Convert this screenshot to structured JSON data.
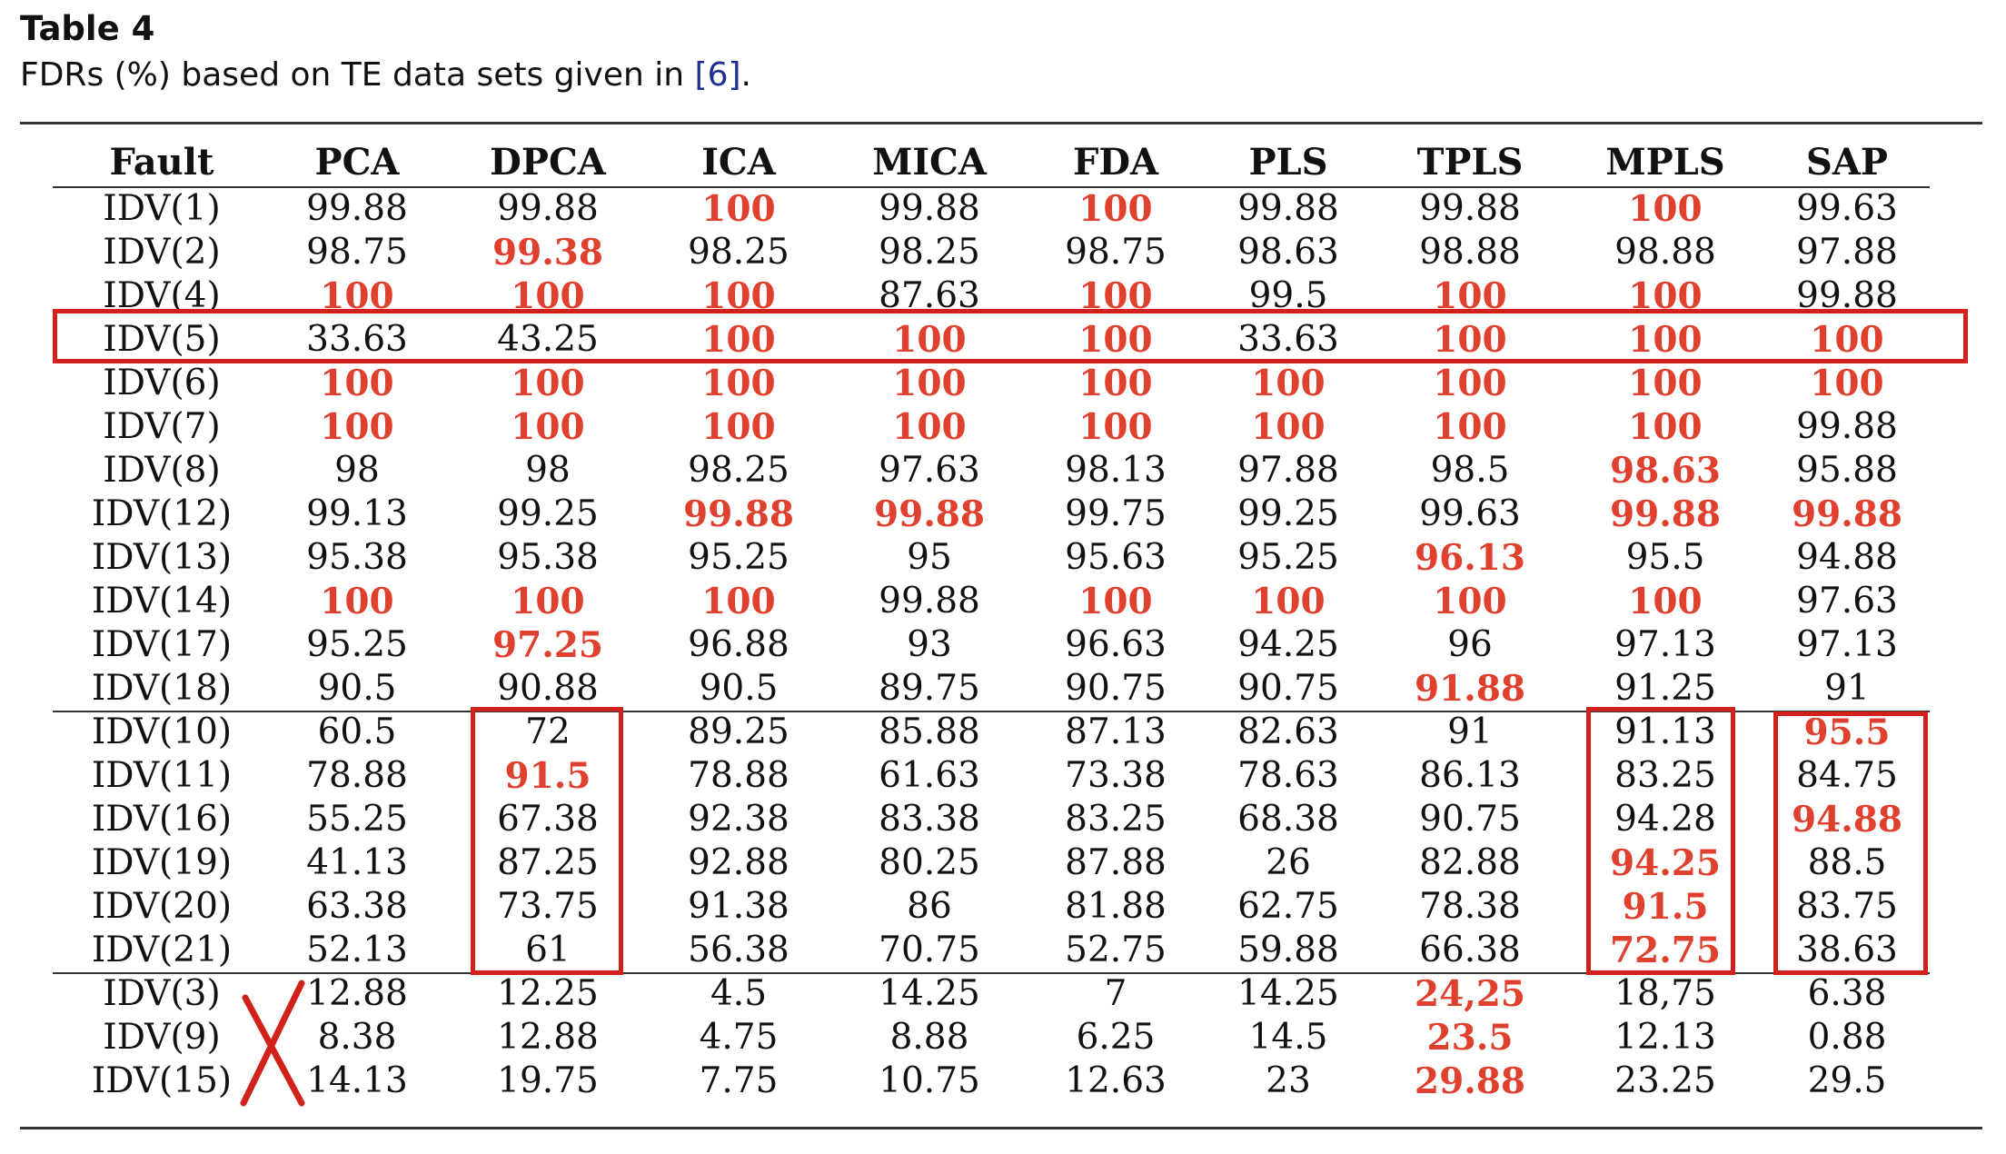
{
  "caption": {
    "title": "Table 4",
    "text": "FDRs (%) based on TE data sets given in ",
    "ref": "[6]",
    "period": "."
  },
  "table": {
    "headers": [
      "Fault",
      "PCA",
      "DPCA",
      "ICA",
      "MICA",
      "FDA",
      "PLS",
      "TPLS",
      "MPLS",
      "SAP"
    ],
    "groups": [
      [
        [
          "IDV(1)",
          "99.88",
          "99.88",
          "100",
          "99.88",
          "100",
          "99.88",
          "99.88",
          "100",
          "99.63"
        ],
        [
          "IDV(2)",
          "98.75",
          "99.38",
          "98.25",
          "98.25",
          "98.75",
          "98.63",
          "98.88",
          "98.88",
          "97.88"
        ],
        [
          "IDV(4)",
          "100",
          "100",
          "100",
          "87.63",
          "100",
          "99.5",
          "100",
          "100",
          "99.88"
        ],
        [
          "IDV(5)",
          "33.63",
          "43.25",
          "100",
          "100",
          "100",
          "33.63",
          "100",
          "100",
          "100"
        ],
        [
          "IDV(6)",
          "100",
          "100",
          "100",
          "100",
          "100",
          "100",
          "100",
          "100",
          "100"
        ],
        [
          "IDV(7)",
          "100",
          "100",
          "100",
          "100",
          "100",
          "100",
          "100",
          "100",
          "99.88"
        ],
        [
          "IDV(8)",
          "98",
          "98",
          "98.25",
          "97.63",
          "98.13",
          "97.88",
          "98.5",
          "98.63",
          "95.88"
        ],
        [
          "IDV(12)",
          "99.13",
          "99.25",
          "99.88",
          "99.88",
          "99.75",
          "99.25",
          "99.63",
          "99.88",
          "99.88"
        ],
        [
          "IDV(13)",
          "95.38",
          "95.38",
          "95.25",
          "95",
          "95.63",
          "95.25",
          "96.13",
          "95.5",
          "94.88"
        ],
        [
          "IDV(14)",
          "100",
          "100",
          "100",
          "99.88",
          "100",
          "100",
          "100",
          "100",
          "97.63"
        ],
        [
          "IDV(17)",
          "95.25",
          "97.25",
          "96.88",
          "93",
          "96.63",
          "94.25",
          "96",
          "97.13",
          "97.13"
        ],
        [
          "IDV(18)",
          "90.5",
          "90.88",
          "90.5",
          "89.75",
          "90.75",
          "90.75",
          "91.88",
          "91.25",
          "91"
        ]
      ],
      [
        [
          "IDV(10)",
          "60.5",
          "72",
          "89.25",
          "85.88",
          "87.13",
          "82.63",
          "91",
          "91.13",
          "95.5"
        ],
        [
          "IDV(11)",
          "78.88",
          "91.5",
          "78.88",
          "61.63",
          "73.38",
          "78.63",
          "86.13",
          "83.25",
          "84.75"
        ],
        [
          "IDV(16)",
          "55.25",
          "67.38",
          "92.38",
          "83.38",
          "83.25",
          "68.38",
          "90.75",
          "94.28",
          "94.88"
        ],
        [
          "IDV(19)",
          "41.13",
          "87.25",
          "92.88",
          "80.25",
          "87.88",
          "26",
          "82.88",
          "94.25",
          "88.5"
        ],
        [
          "IDV(20)",
          "63.38",
          "73.75",
          "91.38",
          "86",
          "81.88",
          "62.75",
          "78.38",
          "91.5",
          "83.75"
        ],
        [
          "IDV(21)",
          "52.13",
          "61",
          "56.38",
          "70.75",
          "52.75",
          "59.88",
          "66.38",
          "72.75",
          "38.63"
        ]
      ],
      [
        [
          "IDV(3)",
          "12.88",
          "12.25",
          "4.5",
          "14.25",
          "7",
          "14.25",
          "24,25",
          "18,75",
          "6.38"
        ],
        [
          "IDV(9)",
          "8.38",
          "12.88",
          "4.75",
          "8.88",
          "6.25",
          "14.5",
          "23.5",
          "12.13",
          "0.88"
        ],
        [
          "IDV(15)",
          "14.13",
          "19.75",
          "7.75",
          "10.75",
          "12.63",
          "23",
          "29.88",
          "23.25",
          "29.5"
        ]
      ]
    ],
    "highlighted": [
      [
        [
          0,
          3
        ],
        [
          0,
          5
        ],
        [
          0,
          8
        ],
        [
          1,
          2
        ],
        [
          2,
          1
        ],
        [
          2,
          2
        ],
        [
          2,
          3
        ],
        [
          2,
          5
        ],
        [
          2,
          7
        ],
        [
          2,
          8
        ],
        [
          3,
          3
        ],
        [
          3,
          4
        ],
        [
          3,
          5
        ],
        [
          3,
          7
        ],
        [
          3,
          8
        ],
        [
          3,
          9
        ],
        [
          4,
          1
        ],
        [
          4,
          2
        ],
        [
          4,
          3
        ],
        [
          4,
          4
        ],
        [
          4,
          5
        ],
        [
          4,
          6
        ],
        [
          4,
          7
        ],
        [
          4,
          8
        ],
        [
          4,
          9
        ],
        [
          5,
          1
        ],
        [
          5,
          2
        ],
        [
          5,
          3
        ],
        [
          5,
          4
        ],
        [
          5,
          5
        ],
        [
          5,
          6
        ],
        [
          5,
          7
        ],
        [
          5,
          8
        ],
        [
          6,
          8
        ],
        [
          7,
          3
        ],
        [
          7,
          4
        ],
        [
          7,
          8
        ],
        [
          7,
          9
        ],
        [
          8,
          7
        ],
        [
          9,
          1
        ],
        [
          9,
          2
        ],
        [
          9,
          3
        ],
        [
          9,
          5
        ],
        [
          9,
          6
        ],
        [
          9,
          7
        ],
        [
          9,
          8
        ],
        [
          10,
          2
        ],
        [
          11,
          7
        ]
      ],
      [
        [
          0,
          9
        ],
        [
          1,
          2
        ],
        [
          2,
          9
        ],
        [
          3,
          8
        ],
        [
          4,
          8
        ],
        [
          5,
          8
        ]
      ],
      [
        [
          0,
          7
        ],
        [
          1,
          7
        ],
        [
          2,
          7
        ]
      ]
    ]
  },
  "annotations": {
    "accent_color": "#d0211a",
    "highlight_color": "#e0402e",
    "x_mark": "cross-out-mark"
  }
}
